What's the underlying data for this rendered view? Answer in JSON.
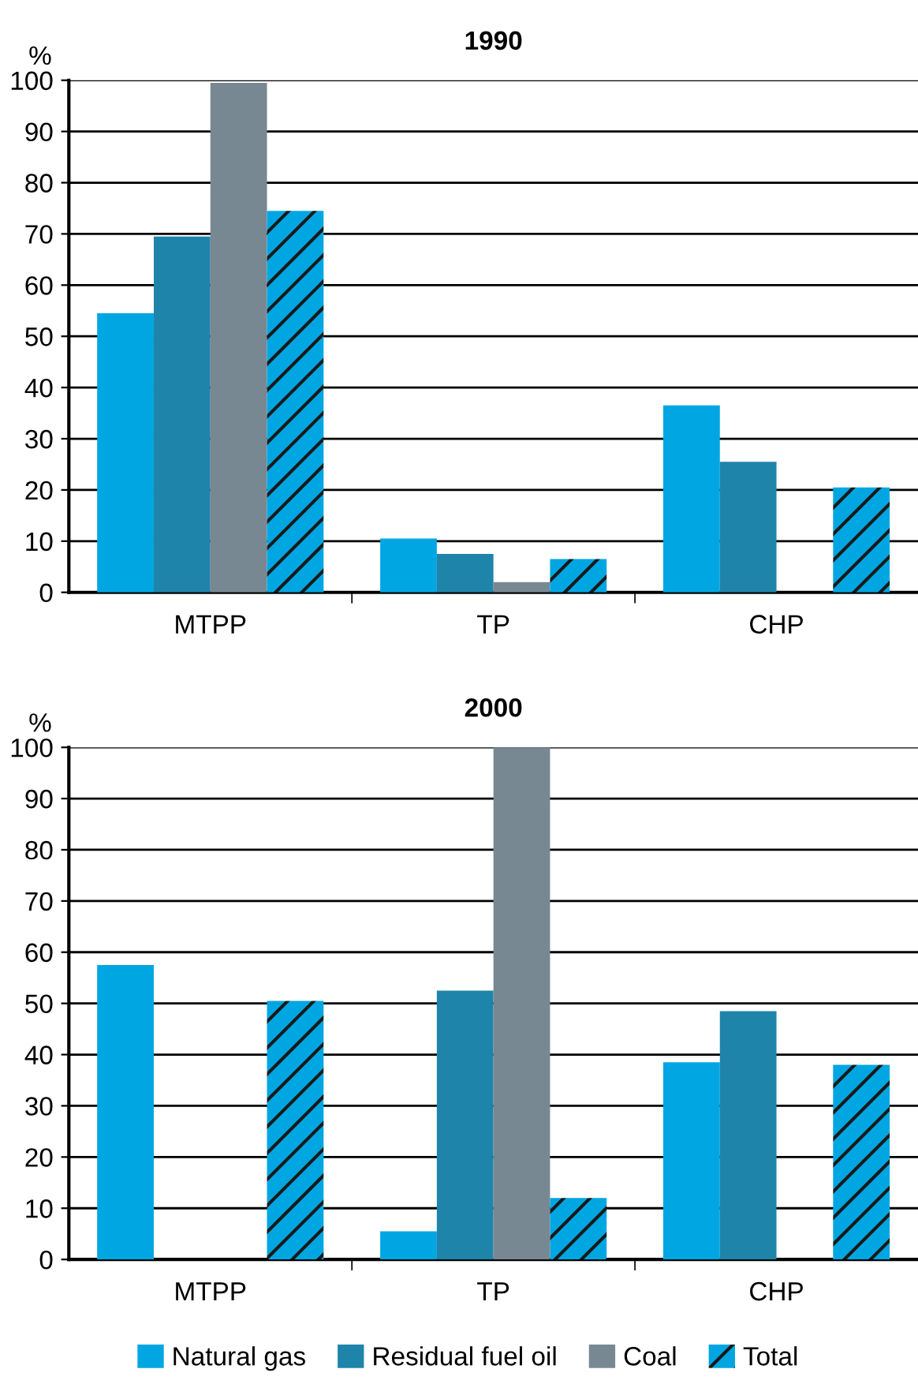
{
  "chart_data": [
    {
      "type": "bar",
      "title": "1990",
      "ylabel": "%",
      "categories": [
        "MTPP",
        "TP",
        "CHP"
      ],
      "ylim": [
        0,
        100
      ],
      "yticks": [
        0,
        10,
        20,
        30,
        40,
        50,
        60,
        70,
        80,
        90,
        100
      ],
      "grid": "y",
      "legend": false,
      "series": [
        {
          "color": "#00a6e2",
          "values": [
            54.5,
            10.5,
            36.5
          ]
        },
        {
          "color": "#1f84aa",
          "values": [
            69.5,
            7.5,
            25.5
          ]
        },
        {
          "color": "#788893",
          "values": [
            99.5,
            2,
            null
          ]
        },
        {
          "color": "#00a6e2",
          "values": [
            74.5,
            6.5,
            20.5
          ]
        }
      ]
    },
    {
      "type": "bar",
      "title": "2000",
      "ylabel": "%",
      "categories": [
        "MTPP",
        "TP",
        "CHP"
      ],
      "ylim": [
        0,
        100
      ],
      "yticks": [
        0,
        10,
        20,
        30,
        40,
        50,
        60,
        70,
        80,
        90,
        100
      ],
      "grid": "y",
      "legend": "bottom",
      "series": [
        {
          "name": "Natural gas",
          "color": "#00a6e2",
          "values": [
            57.5,
            5.5,
            38.5
          ]
        },
        {
          "name": "Residual fuel oil",
          "color": "#1f84aa",
          "values": [
            null,
            52.5,
            48.5
          ]
        },
        {
          "name": "Coal",
          "color": "#788893",
          "values": [
            null,
            100,
            null
          ]
        },
        {
          "name": "Total",
          "color": "#00a6e2",
          "values": [
            50.5,
            12,
            38
          ]
        }
      ]
    }
  ]
}
